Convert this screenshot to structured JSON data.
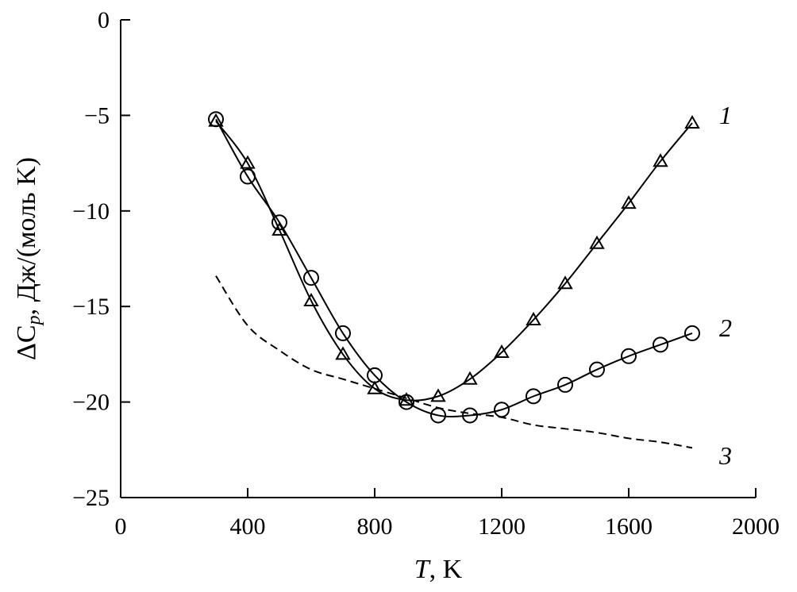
{
  "chart_data": {
    "type": "line",
    "title": "",
    "xlabel_var": "T",
    "xlabel_unit": ", K",
    "ylabel_delta": "ΔC",
    "ylabel_sub": "p",
    "ylabel_unit": ", Дж/(моль K)",
    "xlim": [
      0,
      2000
    ],
    "ylim": [
      -25,
      0
    ],
    "xticks": [
      0,
      400,
      800,
      1200,
      1600,
      2000
    ],
    "yticks": [
      0,
      -5,
      -10,
      -15,
      -20,
      -25
    ],
    "xtick_labels": [
      "0",
      "400",
      "800",
      "1200",
      "1600",
      "2000"
    ],
    "ytick_labels": [
      "0",
      "−5",
      "−10",
      "−15",
      "−20",
      "−25"
    ],
    "grid": false,
    "x": [
      300,
      400,
      500,
      600,
      700,
      800,
      900,
      1000,
      1100,
      1200,
      1300,
      1400,
      1500,
      1600,
      1700,
      1800
    ],
    "series": [
      {
        "name": "1",
        "marker": "triangle",
        "style": "solid",
        "values": [
          -5.3,
          -7.5,
          -11.0,
          -14.7,
          -17.5,
          -19.3,
          -19.9,
          -19.7,
          -18.8,
          -17.4,
          -15.7,
          -13.8,
          -11.7,
          -9.6,
          -7.4,
          -5.4
        ]
      },
      {
        "name": "2",
        "marker": "circle",
        "style": "solid",
        "values": [
          -5.2,
          -8.2,
          -10.6,
          -13.5,
          -16.4,
          -18.6,
          -20.0,
          -20.7,
          -20.7,
          -20.4,
          -19.7,
          -19.1,
          -18.3,
          -17.6,
          -17.0,
          -16.4
        ]
      },
      {
        "name": "3",
        "marker": "none",
        "style": "dashed",
        "values": [
          -13.4,
          -16.0,
          -17.3,
          -18.3,
          -18.8,
          -19.3,
          -19.8,
          -20.3,
          -20.6,
          -20.8,
          -21.2,
          -21.4,
          -21.6,
          -21.9,
          -22.1,
          -22.4
        ]
      }
    ]
  }
}
